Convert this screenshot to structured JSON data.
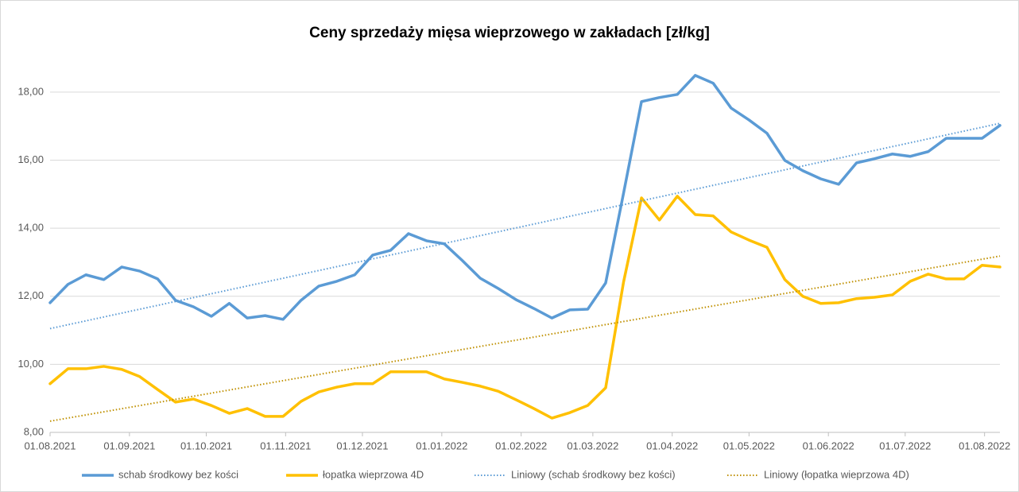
{
  "chart_data": {
    "type": "line",
    "title": "Ceny sprzedaży mięsa wieprzowego w zakładach [zł/kg]",
    "x": [
      "2021-08-01",
      "2021-08-08",
      "2021-08-15",
      "2021-08-22",
      "2021-08-29",
      "2021-09-05",
      "2021-09-12",
      "2021-09-19",
      "2021-09-26",
      "2021-10-03",
      "2021-10-10",
      "2021-10-17",
      "2021-10-24",
      "2021-10-31",
      "2021-11-07",
      "2021-11-14",
      "2021-11-21",
      "2021-11-28",
      "2021-12-05",
      "2021-12-12",
      "2021-12-19",
      "2021-12-26",
      "2022-01-02",
      "2022-01-09",
      "2022-01-16",
      "2022-01-23",
      "2022-01-30",
      "2022-02-06",
      "2022-02-13",
      "2022-02-20",
      "2022-02-27",
      "2022-03-06",
      "2022-03-13",
      "2022-03-20",
      "2022-03-27",
      "2022-04-03",
      "2022-04-10",
      "2022-04-17",
      "2022-04-24",
      "2022-05-01",
      "2022-05-08",
      "2022-05-15",
      "2022-05-22",
      "2022-05-29",
      "2022-06-05",
      "2022-06-12",
      "2022-06-19",
      "2022-06-26",
      "2022-07-03",
      "2022-07-10",
      "2022-07-17",
      "2022-07-24",
      "2022-07-31",
      "2022-08-07"
    ],
    "series": [
      {
        "name": "schab środkowy bez kości",
        "color": "#5b9bd5",
        "values": [
          11.81,
          12.35,
          12.63,
          12.49,
          12.86,
          12.74,
          12.51,
          11.88,
          11.69,
          11.41,
          11.79,
          11.36,
          11.43,
          11.32,
          11.88,
          12.3,
          12.44,
          12.63,
          13.21,
          13.35,
          13.84,
          13.63,
          13.54,
          13.05,
          12.53,
          12.23,
          11.9,
          11.64,
          11.36,
          11.6,
          11.62,
          12.39,
          15.03,
          17.72,
          17.84,
          17.93,
          18.49,
          18.26,
          17.53,
          17.18,
          16.79,
          15.99,
          15.69,
          15.45,
          15.29,
          15.92,
          16.04,
          16.18,
          16.11,
          16.25,
          16.64,
          16.64,
          16.64,
          17.02
        ]
      },
      {
        "name": "łopatka wieprzowa 4D",
        "color": "#ffc000",
        "values": [
          9.43,
          9.87,
          9.87,
          9.94,
          9.85,
          9.64,
          9.26,
          8.89,
          8.98,
          8.79,
          8.56,
          8.7,
          8.47,
          8.47,
          8.91,
          9.19,
          9.33,
          9.43,
          9.43,
          9.78,
          9.78,
          9.78,
          9.57,
          9.47,
          9.36,
          9.21,
          8.96,
          8.7,
          8.42,
          8.58,
          8.79,
          9.31,
          12.42,
          14.89,
          14.24,
          14.94,
          14.4,
          14.36,
          13.89,
          13.65,
          13.44,
          12.49,
          12.0,
          11.79,
          11.81,
          11.93,
          11.97,
          12.04,
          12.44,
          12.65,
          12.51,
          12.51,
          12.91,
          12.86
        ]
      },
      {
        "name": "Liniowy (schab środkowy bez kości)",
        "color": "#5b9bd5",
        "dash": "dotted",
        "x": [
          "2021-08-01",
          "2022-08-07"
        ],
        "values": [
          11.05,
          17.08
        ]
      },
      {
        "name": "Liniowy (łopatka wieprzowa 4D)",
        "color": "#bf9000",
        "dash": "dotted",
        "x": [
          "2021-08-01",
          "2022-08-07"
        ],
        "values": [
          8.33,
          13.18
        ]
      }
    ],
    "xlim": [
      "2021-08-01",
      "2022-08-07"
    ],
    "xticks": [
      {
        "value": "2021-08-01",
        "label": "01.08.2021"
      },
      {
        "value": "2021-09-01",
        "label": "01.09.2021"
      },
      {
        "value": "2021-10-01",
        "label": "01.10.2021"
      },
      {
        "value": "2021-11-01",
        "label": "01.11.2021"
      },
      {
        "value": "2021-12-01",
        "label": "01.12.2021"
      },
      {
        "value": "2022-01-01",
        "label": "01.01.2022"
      },
      {
        "value": "2022-02-01",
        "label": "01.02.2022"
      },
      {
        "value": "2022-03-01",
        "label": "01.03.2022"
      },
      {
        "value": "2022-04-01",
        "label": "01.04.2022"
      },
      {
        "value": "2022-05-01",
        "label": "01.05.2022"
      },
      {
        "value": "2022-06-01",
        "label": "01.06.2022"
      },
      {
        "value": "2022-07-01",
        "label": "01.07.2022"
      },
      {
        "value": "2022-08-01",
        "label": "01.08.2022"
      }
    ],
    "ylim": [
      8,
      19
    ],
    "yticks": [
      {
        "value": 8,
        "label": "8,00"
      },
      {
        "value": 10,
        "label": "10,00"
      },
      {
        "value": 12,
        "label": "12,00"
      },
      {
        "value": 14,
        "label": "14,00"
      },
      {
        "value": 16,
        "label": "16,00"
      },
      {
        "value": 18,
        "label": "18,00"
      }
    ],
    "grid": true,
    "legend": "bottom"
  }
}
